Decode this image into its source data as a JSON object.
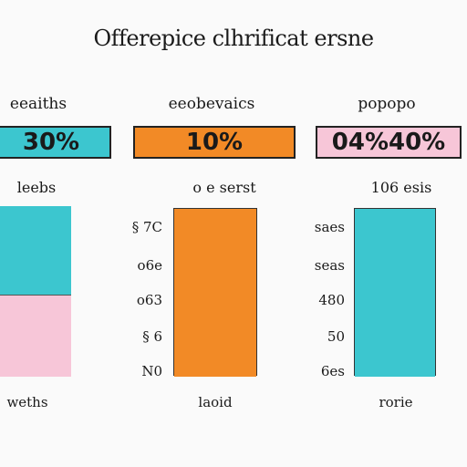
{
  "chart_data": {
    "type": "bar",
    "title": "Offerepice clhrificat ersne",
    "panels": [
      {
        "label": "eeaiths",
        "box_value": "30%",
        "box_color": "#3cc6cf",
        "sub_label": "leebs",
        "ticks": [],
        "segments": [
          {
            "color": "#3cc6cf",
            "share": 0.52
          },
          {
            "color": "#f7c6d8",
            "share": 0.48
          }
        ],
        "footer": "weths"
      },
      {
        "label": "eeobevaics",
        "box_value": "10%",
        "box_color": "#f28a26",
        "sub_label": "o e serst",
        "ticks": [
          "§ 7C",
          "o6e",
          "o63",
          "§ 6",
          "N0"
        ],
        "segments": [
          {
            "color": "#f28a26",
            "share": 1.0
          }
        ],
        "footer": "laoid"
      },
      {
        "label": "popopo",
        "box_value": "04%40%",
        "box_color": "#f7c6d8",
        "sub_label": "106 esis",
        "ticks": [
          "saes",
          "seas",
          "480",
          "50",
          "6es"
        ],
        "segments": [
          {
            "color": "#3cc6cf",
            "share": 1.0
          }
        ],
        "footer": "rorie"
      }
    ]
  },
  "colors": {
    "teal": "#3cc6cf",
    "orange": "#f28a26",
    "pink": "#f7c6d8"
  }
}
